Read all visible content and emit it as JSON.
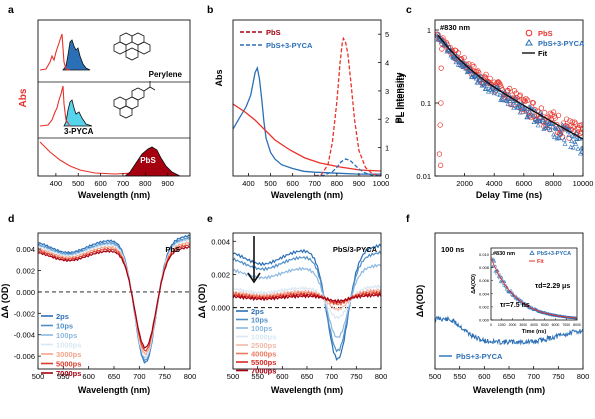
{
  "panel_labels": [
    "a",
    "b",
    "c",
    "d",
    "e",
    "f"
  ],
  "colors": {
    "red": "#e8312a",
    "blue": "#2b6fb6",
    "navy": "#2f4f8a",
    "cyan": "#55d4ec",
    "darkred": "#a50010",
    "black": "#111111"
  },
  "chart_data": [
    {
      "id": "a",
      "type": "area",
      "xlabel": "Wavelength (nm)",
      "ylabel": "Abs",
      "xticks": [
        "400",
        "500",
        "600",
        "700",
        "800",
        "900"
      ],
      "xlim": [
        320,
        1000
      ],
      "series": [
        {
          "name": "Perylene",
          "abs_peaks_nm": [
            390,
            410,
            436
          ],
          "pl_peaks_nm": [
            445,
            472,
            505
          ]
        },
        {
          "name": "3-PYCA",
          "abs_peaks_nm": [
            405,
            430,
            455
          ],
          "pl_peaks_nm": [
            465,
            490
          ]
        },
        {
          "name": "PbS",
          "abs_peak_nm": 830,
          "pl_peak_nm": 830
        }
      ]
    },
    {
      "id": "b",
      "type": "line",
      "xlabel": "Wavelength (nm)",
      "ylabel_left": "Abs",
      "ylabel_right": "PL Intensity",
      "xticks": [
        "400",
        "500",
        "600",
        "700",
        "800",
        "900",
        "1000"
      ],
      "yticks_right": [
        "0",
        "1",
        "2",
        "3",
        "4",
        "5"
      ],
      "xlim": [
        330,
        1000
      ],
      "ylim_right": [
        0,
        5.5
      ],
      "series": [
        {
          "name": "PbS",
          "style": "dashed",
          "pl_x": [
            700,
            730,
            760,
            780,
            800,
            815,
            825,
            830,
            840,
            850,
            865,
            880,
            900,
            930,
            960,
            1000
          ],
          "pl_y": [
            0,
            0.05,
            0.4,
            1.2,
            2.6,
            4.0,
            4.7,
            4.85,
            4.7,
            4.3,
            3.2,
            2.0,
            0.9,
            0.3,
            0.08,
            0
          ]
        },
        {
          "name": "PbS+3-PYCA",
          "style": "dashed",
          "pl_x": [
            700,
            740,
            780,
            800,
            820,
            840,
            860,
            880,
            900,
            930,
            960,
            1000
          ],
          "pl_y": [
            0,
            0.02,
            0.15,
            0.3,
            0.5,
            0.6,
            0.55,
            0.4,
            0.25,
            0.1,
            0.03,
            0
          ],
          "abs_x": [
            330,
            360,
            390,
            410,
            420,
            430,
            440,
            450,
            460,
            470,
            480,
            500,
            520,
            550,
            600,
            650,
            700,
            800,
            900,
            1000
          ],
          "abs_y_rel": [
            0.5,
            0.62,
            0.74,
            0.86,
            0.98,
            1.1,
            1.15,
            1.03,
            0.82,
            0.58,
            0.4,
            0.25,
            0.18,
            0.12,
            0.08,
            0.05,
            0.04,
            0.03,
            0.02,
            0.02
          ]
        }
      ]
    },
    {
      "id": "c",
      "type": "scatter",
      "annotation": "#830 nm",
      "xlabel": "Delay Time (ns)",
      "ylabel": "PL Intensity",
      "xticks": [
        "2000",
        "4000",
        "6000",
        "8000",
        "10000"
      ],
      "yticks": [
        "0.01",
        "0.1",
        "1"
      ],
      "yscale": "log",
      "xlim": [
        0,
        10000
      ],
      "ylim": [
        0.01,
        1
      ],
      "series": [
        {
          "name": "PbS",
          "marker": "circle",
          "fit_tau_ns": 2500
        },
        {
          "name": "PbS+3-PYCA",
          "marker": "triangle",
          "fit_tau_ns": 2290
        },
        {
          "name": "Fit",
          "style": "line"
        }
      ]
    },
    {
      "id": "d",
      "type": "line",
      "annotation": "PbS",
      "xlabel": "Wavelength (nm)",
      "ylabel": "ΔA (OD)",
      "xticks": [
        "500",
        "550",
        "600",
        "650",
        "700",
        "750",
        "800"
      ],
      "yticks": [
        "-0.006",
        "-0.004",
        "-0.002",
        "0.000",
        "0.002",
        "0.004"
      ],
      "xlim": [
        500,
        800
      ],
      "ylim": [
        -0.0072,
        0.0055
      ],
      "series": [
        {
          "name": "2ps",
          "color": "#2b6fb6",
          "bleach_min": -0.0066,
          "baseline": 0.0049
        },
        {
          "name": "10ps",
          "color": "#4f8fc8",
          "bleach_min": -0.0064,
          "baseline": 0.0047
        },
        {
          "name": "100ps",
          "color": "#8bb8e0",
          "bleach_min": -0.0062,
          "baseline": 0.0046
        },
        {
          "name": "1000ps",
          "color": "#d8e8f4",
          "bleach_min": -0.0061,
          "baseline": 0.0045
        },
        {
          "name": "3000ps",
          "color": "#f4a58a",
          "bleach_min": -0.0058,
          "baseline": 0.0043
        },
        {
          "name": "5000ps",
          "color": "#dc3c2c",
          "bleach_min": -0.0055,
          "baseline": 0.0041
        },
        {
          "name": "7000ps",
          "color": "#a50010",
          "bleach_min": -0.0052,
          "baseline": 0.0039
        }
      ]
    },
    {
      "id": "e",
      "type": "line",
      "annotation": "PbS/3-PYCA",
      "xlabel": "Wavelength (nm)",
      "ylabel": "ΔA (OD)",
      "xticks": [
        "500",
        "550",
        "600",
        "650",
        "700",
        "750",
        "800"
      ],
      "yticks": [
        "0.000",
        "0.002",
        "0.004"
      ],
      "xlim": [
        500,
        800
      ],
      "ylim": [
        -0.0037,
        0.0045
      ],
      "series": [
        {
          "name": "2ps",
          "color": "#2b6fb6",
          "bleach_min": -0.0031,
          "baseline": 0.0035
        },
        {
          "name": "10ps",
          "color": "#4f8fc8",
          "bleach_min": -0.0026,
          "baseline": 0.0031
        },
        {
          "name": "100ps",
          "color": "#8bb8e0",
          "bleach_min": -0.0018,
          "baseline": 0.0024
        },
        {
          "name": "1000ps",
          "color": "#d8e8f4",
          "bleach_min": -0.0006,
          "baseline": 0.0012
        },
        {
          "name": "2500ps",
          "color": "#f4b8a8",
          "bleach_min": -0.0001,
          "baseline": 0.001
        },
        {
          "name": "4000ps",
          "color": "#ec7a62",
          "bleach_min": 0.0002,
          "baseline": 0.0009
        },
        {
          "name": "5500ps",
          "color": "#d62a22",
          "bleach_min": 0.0003,
          "baseline": 0.0008
        },
        {
          "name": "7000ps",
          "color": "#a50010",
          "bleach_min": 0.0004,
          "baseline": 0.0007
        }
      ]
    },
    {
      "id": "f",
      "type": "line",
      "annotation": "100 ns",
      "xlabel": "Wavelength (nm)",
      "ylabel": "ΔA(OD)",
      "xticks": [
        "500",
        "550",
        "600",
        "650",
        "700",
        "750",
        "800"
      ],
      "xlim": [
        500,
        800
      ],
      "series": [
        {
          "name": "PbS+3-PYCA",
          "color": "#2b6fb6"
        }
      ],
      "inset": {
        "annotation": "#830 nm",
        "xlabel": "Time (ns)",
        "ylabel": "ΔA(OD)",
        "xticks": [
          "0",
          "1000",
          "2000",
          "3000",
          "4000",
          "5000",
          "6000",
          "7000",
          "8000"
        ],
        "yticks": [
          "0.000",
          "0.002",
          "0.004",
          "0.006",
          "0.008",
          "0.010"
        ],
        "xlim": [
          0,
          8000
        ],
        "ylim": [
          0,
          0.011
        ],
        "series": [
          {
            "name": "PbS+3-PYCA",
            "marker": "triangle"
          },
          {
            "name": "Fit",
            "style": "line"
          }
        ],
        "annotations": [
          "τd=2.29 μs",
          "τr=7.5 ns"
        ]
      }
    }
  ]
}
